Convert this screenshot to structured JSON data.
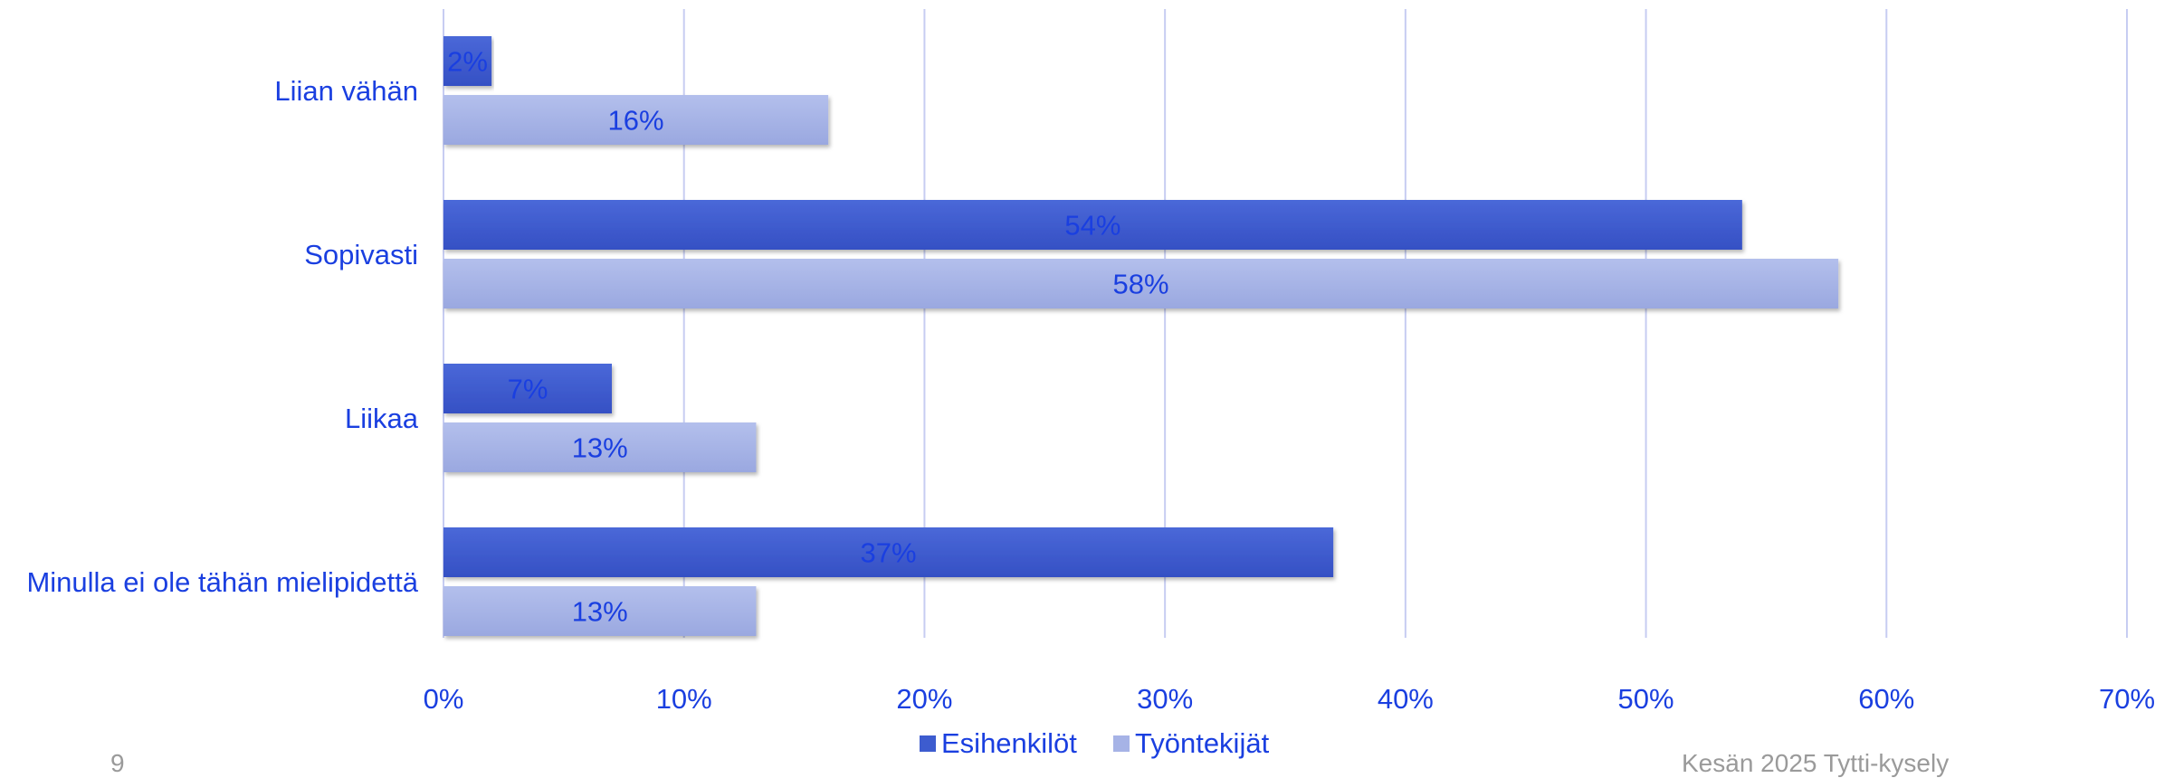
{
  "chart_data": {
    "type": "bar",
    "orientation": "horizontal",
    "categories": [
      "Liian vähän",
      "Sopivasti",
      "Liikaa",
      "Minulla ei ole tähän mielipidettä"
    ],
    "series": [
      {
        "name": "Esihenkilöt",
        "values": [
          2,
          54,
          7,
          37
        ],
        "labels": [
          "2%",
          "54%",
          "7%",
          "37%"
        ],
        "color": "#3d5ccf"
      },
      {
        "name": "Työntekijät",
        "values": [
          16,
          58,
          13,
          13
        ],
        "labels": [
          "16%",
          "58%",
          "13%",
          "13%"
        ],
        "color": "#a6b3e6"
      }
    ],
    "xlim": [
      0,
      70
    ],
    "xticks": [
      0,
      10,
      20,
      30,
      40,
      50,
      60,
      70
    ],
    "xtick_labels": [
      "0%",
      "10%",
      "20%",
      "30%",
      "40%",
      "50%",
      "60%",
      "70%"
    ],
    "grid": true,
    "legend_position": "bottom",
    "text_color": "#1a3fe0",
    "grid_color": "#c7cdf2"
  },
  "footer": {
    "page_number": "9",
    "source": "Kesän 2025 Tytti-kysely"
  }
}
